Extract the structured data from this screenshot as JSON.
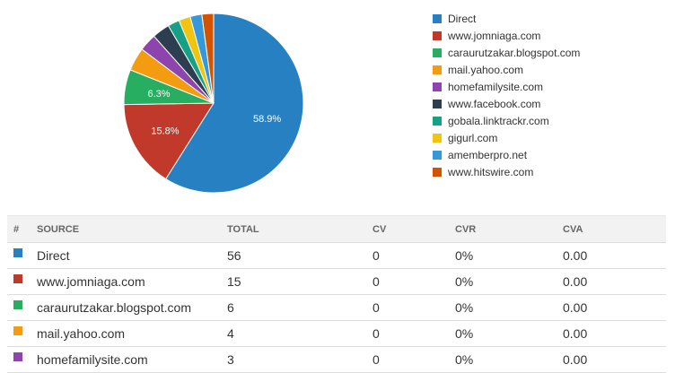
{
  "chart_data": {
    "type": "pie",
    "slices": [
      {
        "name": "Direct",
        "value": 56,
        "label": "58.9%",
        "color": "#2680c2"
      },
      {
        "name": "www.jomniaga.com",
        "value": 15,
        "label": "15.8%",
        "color": "#c0392b"
      },
      {
        "name": "caraurutzakar.blogspot.com",
        "value": 6,
        "label": "6.3%",
        "color": "#27ae60"
      },
      {
        "name": "mail.yahoo.com",
        "value": 4,
        "label": "",
        "color": "#f39c12"
      },
      {
        "name": "homefamilysite.com",
        "value": 3,
        "label": "",
        "color": "#8e44ad"
      },
      {
        "name": "www.facebook.com",
        "value": 3,
        "label": "",
        "color": "#2c3e50"
      },
      {
        "name": "gobala.linktrackr.com",
        "value": 2,
        "label": "",
        "color": "#16a085"
      },
      {
        "name": "gigurl.com",
        "value": 2,
        "label": "",
        "color": "#f1c40f"
      },
      {
        "name": "amemberpro.net",
        "value": 2,
        "label": "",
        "color": "#3498db"
      },
      {
        "name": "www.hitswire.com",
        "value": 2,
        "label": "",
        "color": "#d35400"
      }
    ],
    "legend_position": "right"
  },
  "table": {
    "headers": {
      "idx": "#",
      "source": "SOURCE",
      "total": "TOTAL",
      "cv": "CV",
      "cvr": "CVR",
      "cva": "CVA"
    },
    "rows": [
      {
        "source": "Direct",
        "total": "56",
        "cv": "0",
        "cvr": "0%",
        "cva": "0.00",
        "color": "#2680c2"
      },
      {
        "source": "www.jomniaga.com",
        "total": "15",
        "cv": "0",
        "cvr": "0%",
        "cva": "0.00",
        "color": "#c0392b"
      },
      {
        "source": "caraurutzakar.blogspot.com",
        "total": "6",
        "cv": "0",
        "cvr": "0%",
        "cva": "0.00",
        "color": "#27ae60"
      },
      {
        "source": "mail.yahoo.com",
        "total": "4",
        "cv": "0",
        "cvr": "0%",
        "cva": "0.00",
        "color": "#f39c12"
      },
      {
        "source": "homefamilysite.com",
        "total": "3",
        "cv": "0",
        "cvr": "0%",
        "cva": "0.00",
        "color": "#8e44ad"
      }
    ]
  }
}
